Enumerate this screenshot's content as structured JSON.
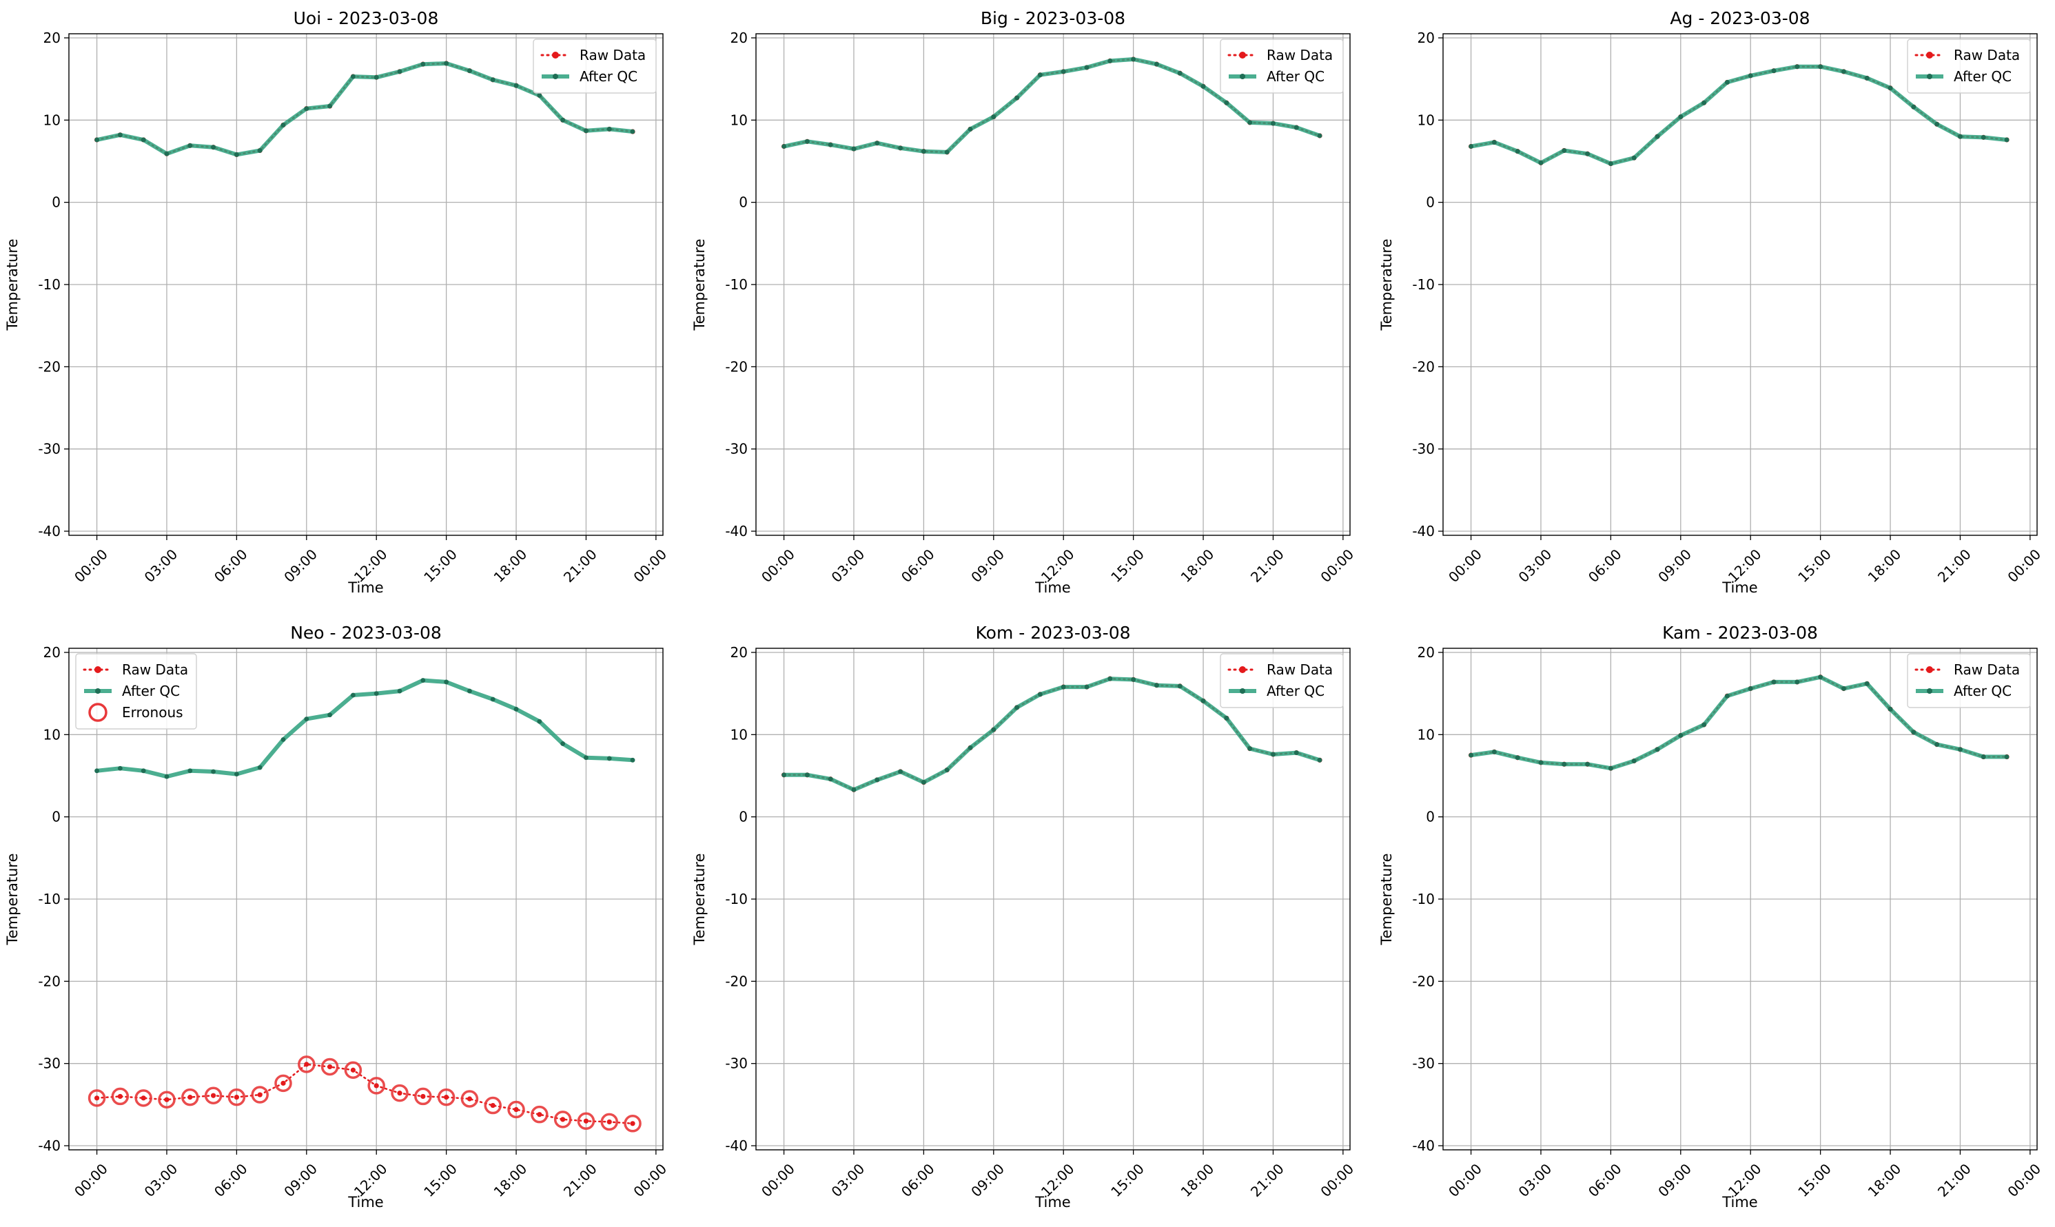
{
  "chart_data": [
    {
      "type": "line",
      "title": "Uoi - 2023-03-08",
      "xlabel": "Time",
      "ylabel": "Temperature",
      "x_ticklabels": [
        "00:00",
        "03:00",
        "06:00",
        "09:00",
        "12:00",
        "15:00",
        "18:00",
        "21:00",
        "00:00"
      ],
      "y_ticks": [
        -40,
        -30,
        -20,
        -10,
        0,
        10,
        20
      ],
      "ylim": [
        -40.5,
        20.5
      ],
      "x_hours": [
        0,
        1,
        2,
        3,
        4,
        5,
        6,
        7,
        8,
        9,
        10,
        11,
        12,
        13,
        14,
        15,
        16,
        17,
        18,
        19,
        20,
        21,
        22,
        23
      ],
      "series": [
        {
          "name": "Raw Data",
          "color": "#e41a1c",
          "values": [
            7.6,
            8.2,
            7.6,
            5.9,
            6.9,
            6.7,
            5.8,
            6.3,
            9.4,
            11.4,
            11.7,
            15.3,
            15.2,
            15.9,
            16.8,
            16.9,
            16.0,
            14.9,
            14.2,
            13.0,
            10.0,
            8.7,
            8.9,
            8.6
          ]
        },
        {
          "name": "After QC",
          "color": "#2ca07d",
          "values": [
            7.6,
            8.2,
            7.6,
            5.9,
            6.9,
            6.7,
            5.8,
            6.3,
            9.4,
            11.4,
            11.7,
            15.3,
            15.2,
            15.9,
            16.8,
            16.9,
            16.0,
            14.9,
            14.2,
            13.0,
            10.0,
            8.7,
            8.9,
            8.6
          ]
        }
      ],
      "legend": {
        "placement": "top-right",
        "entries": [
          "Raw Data",
          "After QC"
        ]
      },
      "grid": true
    },
    {
      "type": "line",
      "title": "Big - 2023-03-08",
      "xlabel": "Time",
      "ylabel": "Temperature",
      "x_ticklabels": [
        "00:00",
        "03:00",
        "06:00",
        "09:00",
        "12:00",
        "15:00",
        "18:00",
        "21:00",
        "00:00"
      ],
      "y_ticks": [
        -40,
        -30,
        -20,
        -10,
        0,
        10,
        20
      ],
      "ylim": [
        -40.5,
        20.5
      ],
      "x_hours": [
        0,
        1,
        2,
        3,
        4,
        5,
        6,
        7,
        8,
        9,
        10,
        11,
        12,
        13,
        14,
        15,
        16,
        17,
        18,
        19,
        20,
        21,
        22,
        23
      ],
      "series": [
        {
          "name": "Raw Data",
          "color": "#e41a1c",
          "values": [
            6.8,
            7.4,
            7.0,
            6.5,
            7.2,
            6.6,
            6.2,
            6.1,
            8.9,
            10.4,
            12.7,
            15.5,
            15.9,
            16.4,
            17.2,
            17.4,
            16.8,
            15.7,
            14.1,
            12.1,
            9.7,
            9.6,
            9.1,
            8.1
          ]
        },
        {
          "name": "After QC",
          "color": "#2ca07d",
          "values": [
            6.8,
            7.4,
            7.0,
            6.5,
            7.2,
            6.6,
            6.2,
            6.1,
            8.9,
            10.4,
            12.7,
            15.5,
            15.9,
            16.4,
            17.2,
            17.4,
            16.8,
            15.7,
            14.1,
            12.1,
            9.7,
            9.6,
            9.1,
            8.1
          ]
        }
      ],
      "legend": {
        "placement": "top-right",
        "entries": [
          "Raw Data",
          "After QC"
        ]
      },
      "grid": true
    },
    {
      "type": "line",
      "title": "Ag - 2023-03-08",
      "xlabel": "Time",
      "ylabel": "Temperature",
      "x_ticklabels": [
        "00:00",
        "03:00",
        "06:00",
        "09:00",
        "12:00",
        "15:00",
        "18:00",
        "21:00",
        "00:00"
      ],
      "y_ticks": [
        -40,
        -30,
        -20,
        -10,
        0,
        10,
        20
      ],
      "ylim": [
        -40.5,
        20.5
      ],
      "x_hours": [
        0,
        1,
        2,
        3,
        4,
        5,
        6,
        7,
        8,
        9,
        10,
        11,
        12,
        13,
        14,
        15,
        16,
        17,
        18,
        19,
        20,
        21,
        22,
        23
      ],
      "series": [
        {
          "name": "Raw Data",
          "color": "#e41a1c",
          "values": [
            6.8,
            7.3,
            6.2,
            4.8,
            6.3,
            5.9,
            4.7,
            5.4,
            8.0,
            10.4,
            12.1,
            14.6,
            15.4,
            16.0,
            16.5,
            16.5,
            15.9,
            15.1,
            13.9,
            11.6,
            9.5,
            8.0,
            7.9,
            7.6
          ]
        },
        {
          "name": "After QC",
          "color": "#2ca07d",
          "values": [
            6.8,
            7.3,
            6.2,
            4.8,
            6.3,
            5.9,
            4.7,
            5.4,
            8.0,
            10.4,
            12.1,
            14.6,
            15.4,
            16.0,
            16.5,
            16.5,
            15.9,
            15.1,
            13.9,
            11.6,
            9.5,
            8.0,
            7.9,
            7.6
          ]
        }
      ],
      "legend": {
        "placement": "top-right",
        "entries": [
          "Raw Data",
          "After QC"
        ]
      },
      "grid": true
    },
    {
      "type": "line",
      "title": "Neo - 2023-03-08",
      "xlabel": "Time",
      "ylabel": "Temperature",
      "x_ticklabels": [
        "00:00",
        "03:00",
        "06:00",
        "09:00",
        "12:00",
        "15:00",
        "18:00",
        "21:00",
        "00:00"
      ],
      "y_ticks": [
        -40,
        -30,
        -20,
        -10,
        0,
        10,
        20
      ],
      "ylim": [
        -40.5,
        20.5
      ],
      "x_hours": [
        0,
        1,
        2,
        3,
        4,
        5,
        6,
        7,
        8,
        9,
        10,
        11,
        12,
        13,
        14,
        15,
        16,
        17,
        18,
        19,
        20,
        21,
        22,
        23
      ],
      "series": [
        {
          "name": "Raw Data",
          "color": "#e41a1c",
          "values": [
            -34.2,
            -34.0,
            -34.2,
            -34.4,
            -34.1,
            -33.9,
            -34.1,
            -33.8,
            -32.4,
            -30.1,
            -30.4,
            -30.8,
            -32.7,
            -33.6,
            -34.0,
            -34.1,
            -34.3,
            -35.1,
            -35.6,
            -36.2,
            -36.8,
            -37.0,
            -37.1,
            -37.3
          ]
        },
        {
          "name": "After QC",
          "color": "#2ca07d",
          "values": [
            5.6,
            5.9,
            5.6,
            4.9,
            5.6,
            5.5,
            5.2,
            6.0,
            9.4,
            11.9,
            12.4,
            14.8,
            15.0,
            15.3,
            16.6,
            16.4,
            15.3,
            14.3,
            13.1,
            11.6,
            8.9,
            7.2,
            7.1,
            6.9
          ]
        },
        {
          "name": "Erronous",
          "color": "#e41a1c",
          "values": [
            -34.2,
            -34.0,
            -34.2,
            -34.4,
            -34.1,
            -33.9,
            -34.1,
            -33.8,
            -32.4,
            -30.1,
            -30.4,
            -30.8,
            -32.7,
            -33.6,
            -34.0,
            -34.1,
            -34.3,
            -35.1,
            -35.6,
            -36.2,
            -36.8,
            -37.0,
            -37.1,
            -37.3
          ]
        }
      ],
      "legend": {
        "placement": "top-left",
        "entries": [
          "Raw Data",
          "After QC",
          "Erronous"
        ]
      },
      "grid": true
    },
    {
      "type": "line",
      "title": "Kom - 2023-03-08",
      "xlabel": "Time",
      "ylabel": "Temperature",
      "x_ticklabels": [
        "00:00",
        "03:00",
        "06:00",
        "09:00",
        "12:00",
        "15:00",
        "18:00",
        "21:00",
        "00:00"
      ],
      "y_ticks": [
        -40,
        -30,
        -20,
        -10,
        0,
        10,
        20
      ],
      "ylim": [
        -40.5,
        20.5
      ],
      "x_hours": [
        0,
        1,
        2,
        3,
        4,
        5,
        6,
        7,
        8,
        9,
        10,
        11,
        12,
        13,
        14,
        15,
        16,
        17,
        18,
        19,
        20,
        21,
        22,
        23
      ],
      "series": [
        {
          "name": "Raw Data",
          "color": "#e41a1c",
          "values": [
            5.1,
            5.1,
            4.6,
            3.3,
            4.5,
            5.5,
            4.2,
            5.7,
            8.4,
            10.6,
            13.3,
            14.9,
            15.8,
            15.8,
            16.8,
            16.7,
            16.0,
            15.9,
            14.1,
            12.0,
            8.3,
            7.6,
            7.8,
            6.9
          ]
        },
        {
          "name": "After QC",
          "color": "#2ca07d",
          "values": [
            5.1,
            5.1,
            4.6,
            3.3,
            4.5,
            5.5,
            4.2,
            5.7,
            8.4,
            10.6,
            13.3,
            14.9,
            15.8,
            15.8,
            16.8,
            16.7,
            16.0,
            15.9,
            14.1,
            12.0,
            8.3,
            7.6,
            7.8,
            6.9
          ]
        }
      ],
      "legend": {
        "placement": "top-right",
        "entries": [
          "Raw Data",
          "After QC"
        ]
      },
      "grid": true
    },
    {
      "type": "line",
      "title": "Kam - 2023-03-08",
      "xlabel": "Time",
      "ylabel": "Temperature",
      "x_ticklabels": [
        "00:00",
        "03:00",
        "06:00",
        "09:00",
        "12:00",
        "15:00",
        "18:00",
        "21:00",
        "00:00"
      ],
      "y_ticks": [
        -40,
        -30,
        -20,
        -10,
        0,
        10,
        20
      ],
      "ylim": [
        -40.5,
        20.5
      ],
      "x_hours": [
        0,
        1,
        2,
        3,
        4,
        5,
        6,
        7,
        8,
        9,
        10,
        11,
        12,
        13,
        14,
        15,
        16,
        17,
        18,
        19,
        20,
        21,
        22,
        23
      ],
      "series": [
        {
          "name": "Raw Data",
          "color": "#e41a1c",
          "values": [
            7.5,
            7.9,
            7.2,
            6.6,
            6.4,
            6.4,
            5.9,
            6.8,
            8.2,
            9.9,
            11.2,
            14.7,
            15.6,
            16.4,
            16.4,
            17.0,
            15.6,
            16.2,
            13.1,
            10.3,
            8.8,
            8.2,
            7.3,
            7.3
          ]
        },
        {
          "name": "After QC",
          "color": "#2ca07d",
          "values": [
            7.5,
            7.9,
            7.2,
            6.6,
            6.4,
            6.4,
            5.9,
            6.8,
            8.2,
            9.9,
            11.2,
            14.7,
            15.6,
            16.4,
            16.4,
            17.0,
            15.6,
            16.2,
            13.1,
            10.3,
            8.8,
            8.2,
            7.3,
            7.3
          ]
        }
      ],
      "legend": {
        "placement": "top-right",
        "entries": [
          "Raw Data",
          "After QC"
        ]
      },
      "grid": true
    }
  ]
}
